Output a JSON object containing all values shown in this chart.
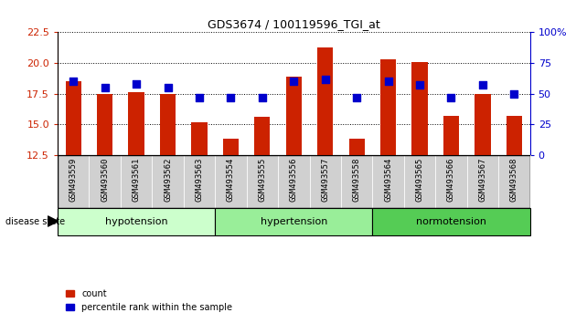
{
  "title": "GDS3674 / 100119596_TGI_at",
  "samples": [
    "GSM493559",
    "GSM493560",
    "GSM493561",
    "GSM493562",
    "GSM493563",
    "GSM493554",
    "GSM493555",
    "GSM493556",
    "GSM493557",
    "GSM493558",
    "GSM493564",
    "GSM493565",
    "GSM493566",
    "GSM493567",
    "GSM493568"
  ],
  "counts": [
    18.5,
    17.5,
    17.6,
    17.5,
    15.2,
    13.8,
    15.6,
    18.9,
    21.3,
    13.8,
    20.3,
    20.1,
    15.7,
    17.5,
    15.7
  ],
  "percentiles": [
    60,
    55,
    58,
    55,
    47,
    47,
    47,
    60,
    62,
    47,
    60,
    57,
    47,
    57,
    50
  ],
  "groups": [
    {
      "label": "hypotension",
      "start": 0,
      "end": 5,
      "color": "#ccffcc"
    },
    {
      "label": "hypertension",
      "start": 5,
      "end": 10,
      "color": "#99ee99"
    },
    {
      "label": "normotension",
      "start": 10,
      "end": 15,
      "color": "#55cc55"
    }
  ],
  "ylim_left": [
    12.5,
    22.5
  ],
  "ylim_right": [
    0,
    100
  ],
  "yticks_left": [
    12.5,
    15.0,
    17.5,
    20.0,
    22.5
  ],
  "yticks_right": [
    0,
    25,
    50,
    75,
    100
  ],
  "bar_color": "#cc2200",
  "dot_color": "#0000cc",
  "grid_color": "#000000",
  "bar_width": 0.5,
  "dot_size": 35,
  "xticklabel_bg": "#d0d0d0"
}
